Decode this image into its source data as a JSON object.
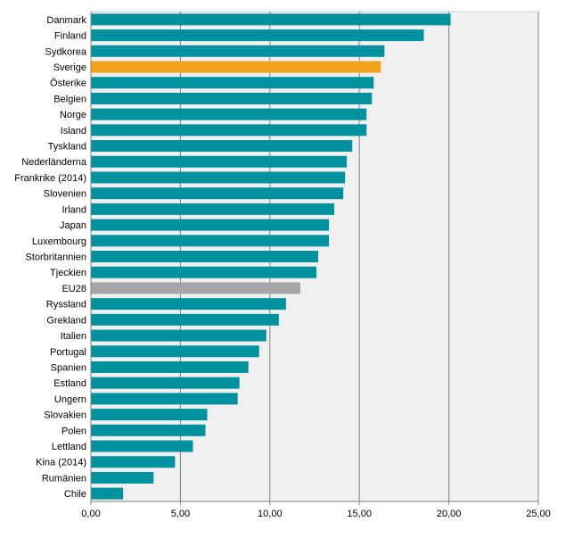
{
  "chart_data": {
    "type": "bar",
    "orientation": "horizontal",
    "title": "",
    "xlabel": "",
    "ylabel": "",
    "xlim": [
      0,
      25
    ],
    "x_ticks": [
      "0,00",
      "5,00",
      "10,00",
      "15,00",
      "20,00",
      "25,00"
    ],
    "grid": true,
    "colors": {
      "default": "#00919f",
      "highlight": "#f5a21b",
      "reference": "#a6a6a6",
      "plot_bg": "#f0f0f0"
    },
    "bars": [
      {
        "label": "Danmark",
        "value": 20.1,
        "kind": "default"
      },
      {
        "label": "Finland",
        "value": 18.6,
        "kind": "default"
      },
      {
        "label": "Sydkorea",
        "value": 16.4,
        "kind": "default"
      },
      {
        "label": "Sverige",
        "value": 16.2,
        "kind": "highlight"
      },
      {
        "label": "Österike",
        "value": 15.8,
        "kind": "default"
      },
      {
        "label": "Belgien",
        "value": 15.7,
        "kind": "default"
      },
      {
        "label": "Norge",
        "value": 15.4,
        "kind": "default"
      },
      {
        "label": "Island",
        "value": 15.4,
        "kind": "default"
      },
      {
        "label": "Tyskland",
        "value": 14.6,
        "kind": "default"
      },
      {
        "label": "Nederländerna",
        "value": 14.3,
        "kind": "default"
      },
      {
        "label": "Frankrike (2014)",
        "value": 14.2,
        "kind": "default"
      },
      {
        "label": "Slovenien",
        "value": 14.1,
        "kind": "default"
      },
      {
        "label": "Irland",
        "value": 13.6,
        "kind": "default"
      },
      {
        "label": "Japan",
        "value": 13.3,
        "kind": "default"
      },
      {
        "label": "Luxembourg",
        "value": 13.3,
        "kind": "default"
      },
      {
        "label": "Storbritannien",
        "value": 12.7,
        "kind": "default"
      },
      {
        "label": "Tjeckien",
        "value": 12.6,
        "kind": "default"
      },
      {
        "label": "EU28",
        "value": 11.7,
        "kind": "reference"
      },
      {
        "label": "Ryssland",
        "value": 10.9,
        "kind": "default"
      },
      {
        "label": "Grekland",
        "value": 10.5,
        "kind": "default"
      },
      {
        "label": "Italien",
        "value": 9.8,
        "kind": "default"
      },
      {
        "label": "Portugal",
        "value": 9.4,
        "kind": "default"
      },
      {
        "label": "Spanien",
        "value": 8.8,
        "kind": "default"
      },
      {
        "label": "Estland",
        "value": 8.3,
        "kind": "default"
      },
      {
        "label": "Ungern",
        "value": 8.2,
        "kind": "default"
      },
      {
        "label": "Slovakien",
        "value": 6.5,
        "kind": "default"
      },
      {
        "label": "Polen",
        "value": 6.4,
        "kind": "default"
      },
      {
        "label": "Lettland",
        "value": 5.7,
        "kind": "default"
      },
      {
        "label": "Kina (2014)",
        "value": 4.7,
        "kind": "default"
      },
      {
        "label": "Rumänien",
        "value": 3.5,
        "kind": "default"
      },
      {
        "label": "Chile",
        "value": 1.8,
        "kind": "default"
      }
    ]
  }
}
